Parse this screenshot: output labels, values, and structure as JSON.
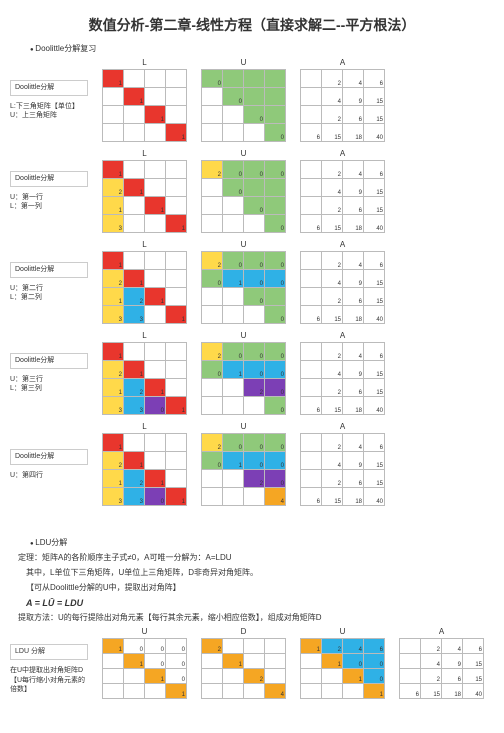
{
  "title": "数值分析-第二章-线性方程（直接求解二--平方根法）",
  "section1_bullet": "Doolittle分解复习",
  "doolittle": {
    "box_title": "Doolittle分解",
    "row1_desc": [
      "L:下三角矩阵【单位】",
      "U：上三角矩阵"
    ],
    "row2_desc": [
      "U：第一行",
      "L：第一列"
    ],
    "row3_desc": [
      "U：第二行",
      "L：第二列"
    ],
    "row4_desc": [
      "U：第三行",
      "L：第三列"
    ],
    "row5_desc": [
      "U：第四行"
    ],
    "L_labels": "L",
    "U_labels": "U",
    "A_labels": "A",
    "A_data": [
      [
        "",
        "2",
        "4",
        "6"
      ],
      [
        "",
        "4",
        "9",
        "15"
      ],
      [
        "",
        "2",
        "6",
        "15"
      ],
      [
        "6",
        "15",
        "18",
        "40"
      ]
    ],
    "L1": [
      [
        "1",
        "",
        "",
        ""
      ],
      [
        "",
        "1",
        "",
        ""
      ],
      [
        "",
        "",
        "1",
        ""
      ],
      [
        "",
        "",
        "",
        "1"
      ]
    ],
    "U1": [
      [
        "0",
        "",
        "",
        ""
      ],
      [
        "",
        "0",
        "",
        ""
      ],
      [
        "",
        "",
        "0",
        ""
      ],
      [
        "",
        "",
        "",
        "0"
      ]
    ],
    "L2": [
      [
        "1",
        "",
        "",
        ""
      ],
      [
        "2",
        "1",
        "",
        ""
      ],
      [
        "1",
        "",
        "1",
        ""
      ],
      [
        "3",
        "",
        "",
        "1"
      ]
    ],
    "U2": [
      [
        "2",
        "0",
        "0",
        "0"
      ],
      [
        "",
        "0",
        "",
        ""
      ],
      [
        "",
        "",
        "0",
        ""
      ],
      [
        "",
        "",
        "",
        "0"
      ]
    ],
    "L3": [
      [
        "1",
        "",
        "",
        ""
      ],
      [
        "2",
        "1",
        "",
        ""
      ],
      [
        "1",
        "2",
        "1",
        ""
      ],
      [
        "3",
        "3",
        "",
        "1"
      ]
    ],
    "U3": [
      [
        "2",
        "0",
        "0",
        "0"
      ],
      [
        "0",
        "1",
        "0",
        "0"
      ],
      [
        "",
        "",
        "0",
        ""
      ],
      [
        "",
        "",
        "",
        "0"
      ]
    ],
    "L4": [
      [
        "1",
        "",
        "",
        ""
      ],
      [
        "2",
        "1",
        "",
        ""
      ],
      [
        "1",
        "2",
        "1",
        ""
      ],
      [
        "3",
        "3",
        "0",
        "1"
      ]
    ],
    "U4": [
      [
        "2",
        "0",
        "0",
        "0"
      ],
      [
        "0",
        "1",
        "0",
        "0"
      ],
      [
        "",
        "",
        "2",
        "0"
      ],
      [
        "",
        "",
        "",
        "0"
      ]
    ],
    "L5": [
      [
        "1",
        "",
        "",
        ""
      ],
      [
        "2",
        "1",
        "",
        ""
      ],
      [
        "1",
        "2",
        "1",
        ""
      ],
      [
        "3",
        "3",
        "0",
        "1"
      ]
    ],
    "U5": [
      [
        "2",
        "0",
        "0",
        "0"
      ],
      [
        "0",
        "1",
        "0",
        "0"
      ],
      [
        "",
        "",
        "2",
        "0"
      ],
      [
        "",
        "",
        "",
        "4"
      ]
    ],
    "colors1": {
      "L": [
        [
          "r",
          "",
          "",
          ""
        ],
        [
          "",
          "r",
          "",
          ""
        ],
        [
          "",
          "",
          "r",
          ""
        ],
        [
          "",
          "",
          "",
          "r"
        ]
      ],
      "U": [
        [
          "g",
          "g",
          "g",
          "g"
        ],
        [
          "",
          "g",
          "g",
          "g"
        ],
        [
          "",
          "",
          "g",
          "g"
        ],
        [
          "",
          "",
          "",
          "g"
        ]
      ]
    },
    "colors2": {
      "L": [
        [
          "r",
          "",
          "",
          ""
        ],
        [
          "y",
          "r",
          "",
          ""
        ],
        [
          "y",
          "",
          "r",
          ""
        ],
        [
          "y",
          "",
          "",
          "r"
        ]
      ],
      "U": [
        [
          "y",
          "g",
          "g",
          "g"
        ],
        [
          "",
          "g",
          "g",
          "g"
        ],
        [
          "",
          "",
          "g",
          "g"
        ],
        [
          "",
          "",
          "",
          "g"
        ]
      ]
    },
    "colors3": {
      "L": [
        [
          "r",
          "",
          "",
          ""
        ],
        [
          "y",
          "r",
          "",
          ""
        ],
        [
          "y",
          "b",
          "r",
          ""
        ],
        [
          "y",
          "b",
          "",
          "r"
        ]
      ],
      "U": [
        [
          "y",
          "g",
          "g",
          "g"
        ],
        [
          "g",
          "b",
          "b",
          "b"
        ],
        [
          "",
          "",
          "g",
          "g"
        ],
        [
          "",
          "",
          "",
          "g"
        ]
      ]
    },
    "colors4": {
      "L": [
        [
          "r",
          "",
          "",
          ""
        ],
        [
          "y",
          "r",
          "",
          ""
        ],
        [
          "y",
          "b",
          "r",
          ""
        ],
        [
          "y",
          "b",
          "p",
          "r"
        ]
      ],
      "U": [
        [
          "y",
          "g",
          "g",
          "g"
        ],
        [
          "g",
          "b",
          "b",
          "b"
        ],
        [
          "",
          "",
          "p",
          "p"
        ],
        [
          "",
          "",
          "",
          "g"
        ]
      ]
    },
    "colors5": {
      "L": [
        [
          "r",
          "",
          "",
          ""
        ],
        [
          "y",
          "r",
          "",
          ""
        ],
        [
          "y",
          "b",
          "r",
          ""
        ],
        [
          "y",
          "b",
          "p",
          "r"
        ]
      ],
      "U": [
        [
          "y",
          "g",
          "g",
          "g"
        ],
        [
          "g",
          "b",
          "b",
          "b"
        ],
        [
          "",
          "",
          "p",
          "p"
        ],
        [
          "",
          "",
          "",
          "o"
        ]
      ]
    }
  },
  "section2_bullet": "LDU分解",
  "ldu_text": {
    "line1": "定理：矩阵A的各阶顺序主子式≠0，A可唯一分解为：A=LDU",
    "line2": "其中，L单位下三角矩阵，U单位上三角矩阵，D非奇异对角矩阵。",
    "line3": "【可从Doolittle分解的U中，提取出对角阵】",
    "formula": "A = LŪ = LDU",
    "line4": "提取方法：U的每行提除出对角元素【每行其余元素，缩小相应倍数】，组成对角矩阵D"
  },
  "ldu": {
    "box_title": "LDU 分解",
    "desc": [
      "在U中提取出对角矩阵D",
      "【U每行缩小对角元素的倍数】"
    ],
    "labels": {
      "U": "U",
      "D": "D",
      "Unew": "U",
      "A": "A"
    },
    "A5": [
      [
        "",
        "2",
        "4",
        "6"
      ],
      [
        "",
        "4",
        "9",
        "15"
      ],
      [
        "",
        "2",
        "6",
        "15"
      ],
      [
        "6",
        "15",
        "18",
        "40"
      ]
    ],
    "Ubar": [
      [
        "1",
        "0",
        "0",
        "0"
      ],
      [
        "",
        "1",
        "0",
        "0"
      ],
      [
        "",
        "",
        "1",
        "0"
      ],
      [
        "",
        "",
        "",
        "1"
      ]
    ],
    "D": [
      [
        "2",
        "",
        "",
        ""
      ],
      [
        "",
        "1",
        "",
        ""
      ],
      [
        "",
        "",
        "2",
        ""
      ],
      [
        "",
        "",
        "",
        "4"
      ]
    ],
    "Unew": [
      [
        "1",
        "2",
        "4",
        "6"
      ],
      [
        "",
        "1",
        "0",
        "0"
      ],
      [
        "",
        "",
        "1",
        "0"
      ],
      [
        "",
        "",
        "",
        "1"
      ]
    ],
    "Ubar_colors": [
      [
        "o",
        "",
        "",
        ""
      ],
      [
        "",
        "o",
        "",
        ""
      ],
      [
        "",
        "",
        "o",
        ""
      ],
      [
        "",
        "",
        "",
        "o"
      ]
    ],
    "D_colors": [
      [
        "o",
        "",
        "",
        ""
      ],
      [
        "",
        "o",
        "",
        ""
      ],
      [
        "",
        "",
        "o",
        ""
      ],
      [
        "",
        "",
        "",
        "o"
      ]
    ],
    "Unew_colors": [
      [
        "o",
        "b",
        "b",
        "b"
      ],
      [
        "",
        "o",
        "b",
        "b"
      ],
      [
        "",
        "",
        "o",
        "b"
      ],
      [
        "",
        "",
        "",
        "o"
      ]
    ]
  },
  "palette": {
    "r": "#e8362d",
    "g": "#8fc97a",
    "y": "#ffd94a",
    "b": "#2fb1e6",
    "p": "#7c3fb5",
    "o": "#f5a623"
  }
}
